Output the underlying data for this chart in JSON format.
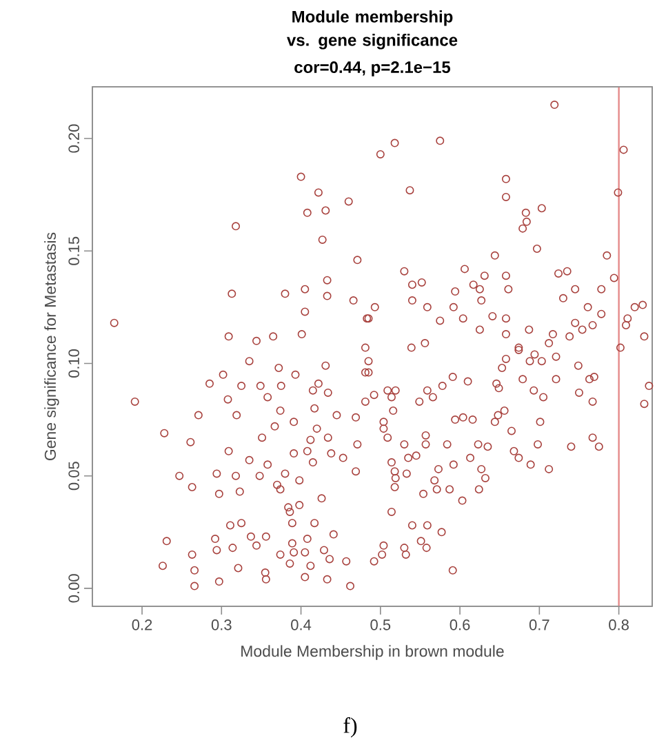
{
  "chart_data": {
    "type": "scatter",
    "title": "Module membership vs. gene significance",
    "subtitle": "cor=0.44, p=2.1e−15",
    "xlabel": "Module Membership in brown module",
    "ylabel": "Gene significance for  Metastasis",
    "annotations": [
      "f)"
    ],
    "marker": "circle",
    "xlim": [
      0.1375,
      0.842
    ],
    "ylim": [
      -0.008,
      0.223
    ],
    "xticks": [
      0.2,
      0.3,
      0.4,
      0.5,
      0.6,
      0.7,
      0.8
    ],
    "yticks": [
      {
        "value": 0,
        "label": "0.00"
      },
      {
        "value": 0.05,
        "label": "0.05"
      },
      {
        "value": 0.1,
        "label": "0.10"
      },
      {
        "value": 0.15,
        "label": "0.15"
      },
      {
        "value": 0.2,
        "label": "0.20"
      }
    ],
    "ref_lines": [
      {
        "axis": "x",
        "value": 0.8,
        "color": "#e58a8a"
      }
    ],
    "series": [
      {
        "color": "#a8413d",
        "x": [
          0.4,
          0.422,
          0.408,
          0.431,
          0.46,
          0.318,
          0.427,
          0.471,
          0.313,
          0.38,
          0.405,
          0.433,
          0.433,
          0.466,
          0.405,
          0.165,
          0.309,
          0.344,
          0.365,
          0.401,
          0.483,
          0.719,
          0.5,
          0.518,
          0.575,
          0.806,
          0.537,
          0.799,
          0.658,
          0.658,
          0.703,
          0.683,
          0.684,
          0.679,
          0.697,
          0.644,
          0.785,
          0.53,
          0.606,
          0.658,
          0.724,
          0.735,
          0.794,
          0.54,
          0.552,
          0.631,
          0.617,
          0.594,
          0.661,
          0.745,
          0.778,
          0.625,
          0.73,
          0.54,
          0.559,
          0.627,
          0.592,
          0.761,
          0.493,
          0.485,
          0.575,
          0.604,
          0.641,
          0.658,
          0.778,
          0.82,
          0.83,
          0.811,
          0.809,
          0.745,
          0.767,
          0.754,
          0.625,
          0.658,
          0.687,
          0.717,
          0.738,
          0.832,
          0.556,
          0.539,
          0.481,
          0.712,
          0.674,
          0.802,
          0.335,
          0.285,
          0.302,
          0.325,
          0.349,
          0.372,
          0.393,
          0.375,
          0.431,
          0.422,
          0.415,
          0.434,
          0.481,
          0.481,
          0.191,
          0.308,
          0.358,
          0.271,
          0.319,
          0.374,
          0.391,
          0.417,
          0.445,
          0.469,
          0.228,
          0.261,
          0.351,
          0.367,
          0.42,
          0.412,
          0.434,
          0.471,
          0.309,
          0.391,
          0.408,
          0.438,
          0.453,
          0.335,
          0.358,
          0.415,
          0.247,
          0.294,
          0.318,
          0.348,
          0.38,
          0.469,
          0.263,
          0.297,
          0.323,
          0.37,
          0.374,
          0.398,
          0.426,
          0.384,
          0.398,
          0.386,
          0.311,
          0.325,
          0.389,
          0.417,
          0.231,
          0.292,
          0.337,
          0.356,
          0.441,
          0.294,
          0.314,
          0.344,
          0.389,
          0.408,
          0.263,
          0.374,
          0.391,
          0.405,
          0.429,
          0.226,
          0.266,
          0.321,
          0.386,
          0.412,
          0.436,
          0.457,
          0.355,
          0.356,
          0.297,
          0.266,
          0.405,
          0.433,
          0.462,
          0.485,
          0.485,
          0.492,
          0.509,
          0.519,
          0.514,
          0.516,
          0.549,
          0.559,
          0.566,
          0.578,
          0.591,
          0.61,
          0.646,
          0.649,
          0.653,
          0.658,
          0.674,
          0.694,
          0.703,
          0.688,
          0.721,
          0.679,
          0.721,
          0.749,
          0.763,
          0.769,
          0.693,
          0.705,
          0.75,
          0.767,
          0.838,
          0.832,
          0.504,
          0.504,
          0.509,
          0.53,
          0.557,
          0.557,
          0.584,
          0.594,
          0.604,
          0.616,
          0.644,
          0.648,
          0.656,
          0.623,
          0.635,
          0.613,
          0.665,
          0.668,
          0.674,
          0.689,
          0.698,
          0.701,
          0.712,
          0.74,
          0.767,
          0.775,
          0.514,
          0.518,
          0.519,
          0.518,
          0.533,
          0.535,
          0.545,
          0.568,
          0.573,
          0.554,
          0.571,
          0.587,
          0.592,
          0.603,
          0.624,
          0.627,
          0.632,
          0.514,
          0.54,
          0.559,
          0.577,
          0.551,
          0.558,
          0.504,
          0.502,
          0.53,
          0.532,
          0.492,
          0.591
        ],
        "values": [
          0.183,
          0.176,
          0.167,
          0.168,
          0.172,
          0.161,
          0.155,
          0.146,
          0.131,
          0.131,
          0.133,
          0.137,
          0.13,
          0.128,
          0.123,
          0.118,
          0.112,
          0.11,
          0.112,
          0.113,
          0.12,
          0.215,
          0.193,
          0.198,
          0.199,
          0.195,
          0.177,
          0.176,
          0.182,
          0.174,
          0.169,
          0.167,
          0.163,
          0.16,
          0.151,
          0.148,
          0.148,
          0.141,
          0.142,
          0.139,
          0.14,
          0.141,
          0.138,
          0.135,
          0.136,
          0.139,
          0.135,
          0.132,
          0.133,
          0.133,
          0.133,
          0.133,
          0.129,
          0.128,
          0.125,
          0.128,
          0.125,
          0.125,
          0.125,
          0.12,
          0.119,
          0.12,
          0.121,
          0.12,
          0.122,
          0.125,
          0.126,
          0.12,
          0.117,
          0.118,
          0.117,
          0.115,
          0.115,
          0.113,
          0.115,
          0.113,
          0.112,
          0.112,
          0.109,
          0.107,
          0.107,
          0.109,
          0.107,
          0.107,
          0.101,
          0.091,
          0.095,
          0.09,
          0.09,
          0.098,
          0.095,
          0.09,
          0.099,
          0.091,
          0.088,
          0.087,
          0.096,
          0.083,
          0.083,
          0.084,
          0.085,
          0.077,
          0.077,
          0.079,
          0.074,
          0.08,
          0.077,
          0.076,
          0.069,
          0.065,
          0.067,
          0.072,
          0.071,
          0.066,
          0.067,
          0.064,
          0.061,
          0.06,
          0.061,
          0.06,
          0.058,
          0.057,
          0.055,
          0.056,
          0.05,
          0.051,
          0.05,
          0.05,
          0.051,
          0.052,
          0.045,
          0.042,
          0.043,
          0.046,
          0.044,
          0.048,
          0.04,
          0.036,
          0.037,
          0.034,
          0.028,
          0.029,
          0.029,
          0.029,
          0.021,
          0.022,
          0.023,
          0.023,
          0.024,
          0.017,
          0.018,
          0.019,
          0.02,
          0.022,
          0.015,
          0.015,
          0.016,
          0.016,
          0.017,
          0.01,
          0.008,
          0.009,
          0.011,
          0.01,
          0.013,
          0.012,
          0.007,
          0.004,
          0.003,
          0.001,
          0.005,
          0.004,
          0.001,
          0.101,
          0.096,
          0.086,
          0.088,
          0.088,
          0.085,
          0.079,
          0.083,
          0.088,
          0.085,
          0.09,
          0.094,
          0.092,
          0.091,
          0.089,
          0.098,
          0.102,
          0.106,
          0.104,
          0.101,
          0.101,
          0.103,
          0.093,
          0.093,
          0.099,
          0.093,
          0.094,
          0.088,
          0.085,
          0.087,
          0.083,
          0.09,
          0.082,
          0.074,
          0.071,
          0.067,
          0.064,
          0.068,
          0.064,
          0.064,
          0.075,
          0.076,
          0.075,
          0.074,
          0.077,
          0.079,
          0.064,
          0.063,
          0.058,
          0.07,
          0.061,
          0.058,
          0.055,
          0.064,
          0.074,
          0.053,
          0.063,
          0.067,
          0.063,
          0.056,
          0.052,
          0.049,
          0.045,
          0.051,
          0.058,
          0.059,
          0.048,
          0.053,
          0.042,
          0.044,
          0.044,
          0.055,
          0.039,
          0.044,
          0.053,
          0.049,
          0.034,
          0.028,
          0.028,
          0.025,
          0.021,
          0.018,
          0.019,
          0.015,
          0.018,
          0.015,
          0.012,
          0.008
        ]
      }
    ]
  }
}
